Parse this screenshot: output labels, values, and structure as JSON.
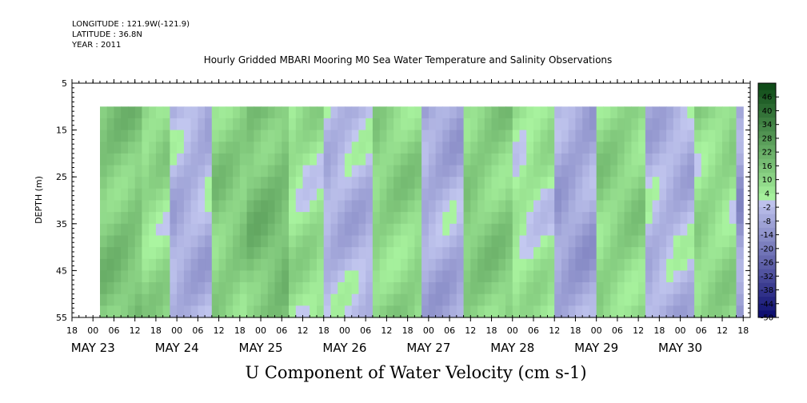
{
  "header": {
    "longitude": "LONGITUDE : 121.9W(-121.9)",
    "latitude": "LATITUDE : 36.8N",
    "year": "YEAR : 2011"
  },
  "chart_data": {
    "type": "heatmap",
    "title": "Hourly Gridded MBARI Mooring M0 Sea Water Temperature and Salinity Observations",
    "variable_label": "U Component of Water Velocity (cm s-1)",
    "ylabel": "DEPTH (m)",
    "yticks": [
      "5",
      "15",
      "25",
      "35",
      "45",
      "55"
    ],
    "ylim": [
      5,
      55
    ],
    "y_inverted": true,
    "data_depth_range": [
      10,
      55
    ],
    "x_start": "2011-05-22T18:00",
    "x_end": "2011-05-30T20:00",
    "data_time_start": "2011-05-23T02:00",
    "hour_ticks": [
      "18",
      "00",
      "06",
      "12",
      "18",
      "00",
      "06",
      "12",
      "18",
      "00",
      "06",
      "12",
      "18",
      "00",
      "06",
      "12",
      "18",
      "00",
      "06",
      "12",
      "18",
      "00",
      "06",
      "12",
      "18",
      "00",
      "06",
      "12",
      "18",
      "00",
      "06",
      "12",
      "18"
    ],
    "date_labels": [
      "MAY 23",
      "MAY 24",
      "MAY 25",
      "MAY 26",
      "MAY 27",
      "MAY 28",
      "MAY 29",
      "MAY 30"
    ],
    "colorbar": {
      "labels": [
        "46",
        "40",
        "34",
        "28",
        "22",
        "16",
        "10",
        "4",
        "-2",
        "-8",
        "-14",
        "-20",
        "-26",
        "-32",
        "-38",
        "-44",
        "-50"
      ],
      "min": -50,
      "max": 52,
      "step": 3
    },
    "pattern": {
      "description_source": "approximate mean velocity bands by hours since x_start",
      "bands": [
        {
          "t0": 8,
          "t1": 20,
          "v": 14
        },
        {
          "t0": 20,
          "t1": 28,
          "v": 8
        },
        {
          "t0": 28,
          "t1": 40,
          "v": -5
        },
        {
          "t0": 40,
          "t1": 50,
          "v": 12
        },
        {
          "t0": 50,
          "t1": 62,
          "v": 16
        },
        {
          "t0": 62,
          "t1": 72,
          "v": 6
        },
        {
          "t0": 72,
          "t1": 86,
          "v": -4
        },
        {
          "t0": 86,
          "t1": 100,
          "v": 10
        },
        {
          "t0": 100,
          "t1": 112,
          "v": -6
        },
        {
          "t0": 112,
          "t1": 126,
          "v": 12
        },
        {
          "t0": 126,
          "t1": 138,
          "v": 4
        },
        {
          "t0": 138,
          "t1": 150,
          "v": -8
        },
        {
          "t0": 150,
          "t1": 164,
          "v": 10
        },
        {
          "t0": 164,
          "t1": 178,
          "v": -4
        },
        {
          "t0": 178,
          "t1": 190,
          "v": 8
        },
        {
          "t0": 190,
          "t1": 202,
          "v": -10
        },
        {
          "t0": 202,
          "t1": 214,
          "v": 12
        },
        {
          "t0": 214,
          "t1": 226,
          "v": -2
        }
      ]
    }
  }
}
